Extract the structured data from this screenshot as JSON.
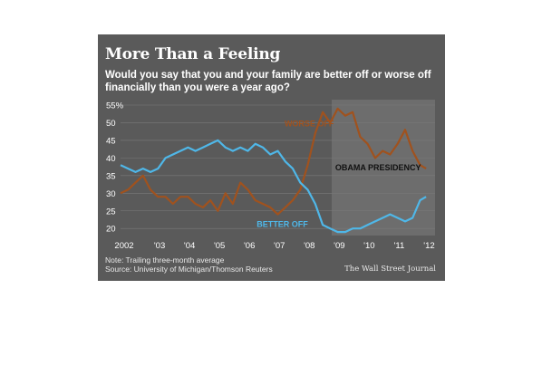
{
  "title": "More Than a Feeling",
  "subtitle": "Would you say that you and your family are better off or worse off financially than you were a year ago?",
  "note": "Note: Trailing three-month average",
  "source": "Source: University of Michigan/Thomson Reuters",
  "credit": "The Wall Street Journal",
  "colors": {
    "worse_off": "#a0521e",
    "better_off": "#4fb7e8",
    "highlight": "#f2b418",
    "better_off_dark": "#22384a",
    "background": "#5a5a5a",
    "band": "#6d6d6d"
  },
  "chart_data": {
    "type": "line",
    "title": "More Than a Feeling",
    "xlabel": "",
    "ylabel": "",
    "ylim": [
      18,
      55
    ],
    "y_ticks": [
      "55%",
      "50",
      "45",
      "40",
      "35",
      "30",
      "25",
      "20"
    ],
    "x_ticks": [
      "2002",
      "'03",
      "'04",
      "'05",
      "'06",
      "'07",
      "'08",
      "'09",
      "'10",
      "'11",
      "'12"
    ],
    "xlim": [
      2002.0,
      2012.5
    ],
    "annotations": [
      {
        "text": "WORSE OFF",
        "x": 2008.3,
        "y": 49
      },
      {
        "text": "OBAMA PRESIDENCY",
        "x": 2010.6,
        "y": 36.5
      },
      {
        "text": "BETTER OFF",
        "x": 2007.4,
        "y": 20.5
      }
    ],
    "shaded_region": {
      "label": "OBAMA PRESIDENCY",
      "x_start": 2009.05,
      "x_end": 2012.5
    },
    "series": [
      {
        "name": "WORSE OFF",
        "color_key": "worse_off",
        "x": [
          2002.0,
          2002.25,
          2002.5,
          2002.75,
          2003.0,
          2003.25,
          2003.5,
          2003.75,
          2004.0,
          2004.25,
          2004.5,
          2004.75,
          2005.0,
          2005.25,
          2005.5,
          2005.75,
          2006.0,
          2006.25,
          2006.5,
          2006.75,
          2007.0,
          2007.25,
          2007.5,
          2007.75,
          2008.0,
          2008.25,
          2008.5,
          2008.75,
          2009.0,
          2009.25,
          2009.5,
          2009.75,
          2010.0,
          2010.25,
          2010.5,
          2010.75,
          2011.0,
          2011.25,
          2011.5,
          2011.75,
          2012.0,
          2012.2
        ],
        "y": [
          30,
          31,
          33,
          35,
          31,
          29,
          29,
          27,
          29,
          29,
          27,
          26,
          28,
          25,
          30,
          27,
          33,
          31,
          28,
          27,
          26,
          24,
          26,
          28,
          31,
          38,
          47,
          53,
          50,
          54,
          52,
          53,
          46,
          44,
          40,
          42,
          41,
          44,
          48,
          42,
          38,
          37
        ]
      },
      {
        "name": "BETTER OFF",
        "color_key": "better_off",
        "x": [
          2002.0,
          2002.25,
          2002.5,
          2002.75,
          2003.0,
          2003.25,
          2003.5,
          2003.75,
          2004.0,
          2004.25,
          2004.5,
          2004.75,
          2005.0,
          2005.25,
          2005.5,
          2005.75,
          2006.0,
          2006.25,
          2006.5,
          2006.75,
          2007.0,
          2007.25,
          2007.5,
          2007.75,
          2008.0,
          2008.25,
          2008.5,
          2008.75,
          2009.0,
          2009.25,
          2009.5,
          2009.75,
          2010.0,
          2010.25,
          2010.5,
          2010.75,
          2011.0,
          2011.25,
          2011.5,
          2011.75,
          2012.0,
          2012.2
        ],
        "y": [
          38,
          37,
          36,
          37,
          36,
          37,
          40,
          41,
          42,
          43,
          42,
          43,
          44,
          45,
          43,
          42,
          43,
          42,
          44,
          43,
          41,
          42,
          39,
          37,
          33,
          31,
          27,
          21,
          20,
          19,
          19,
          20,
          20,
          21,
          22,
          23,
          24,
          23,
          22,
          23,
          28,
          29
        ]
      }
    ]
  }
}
